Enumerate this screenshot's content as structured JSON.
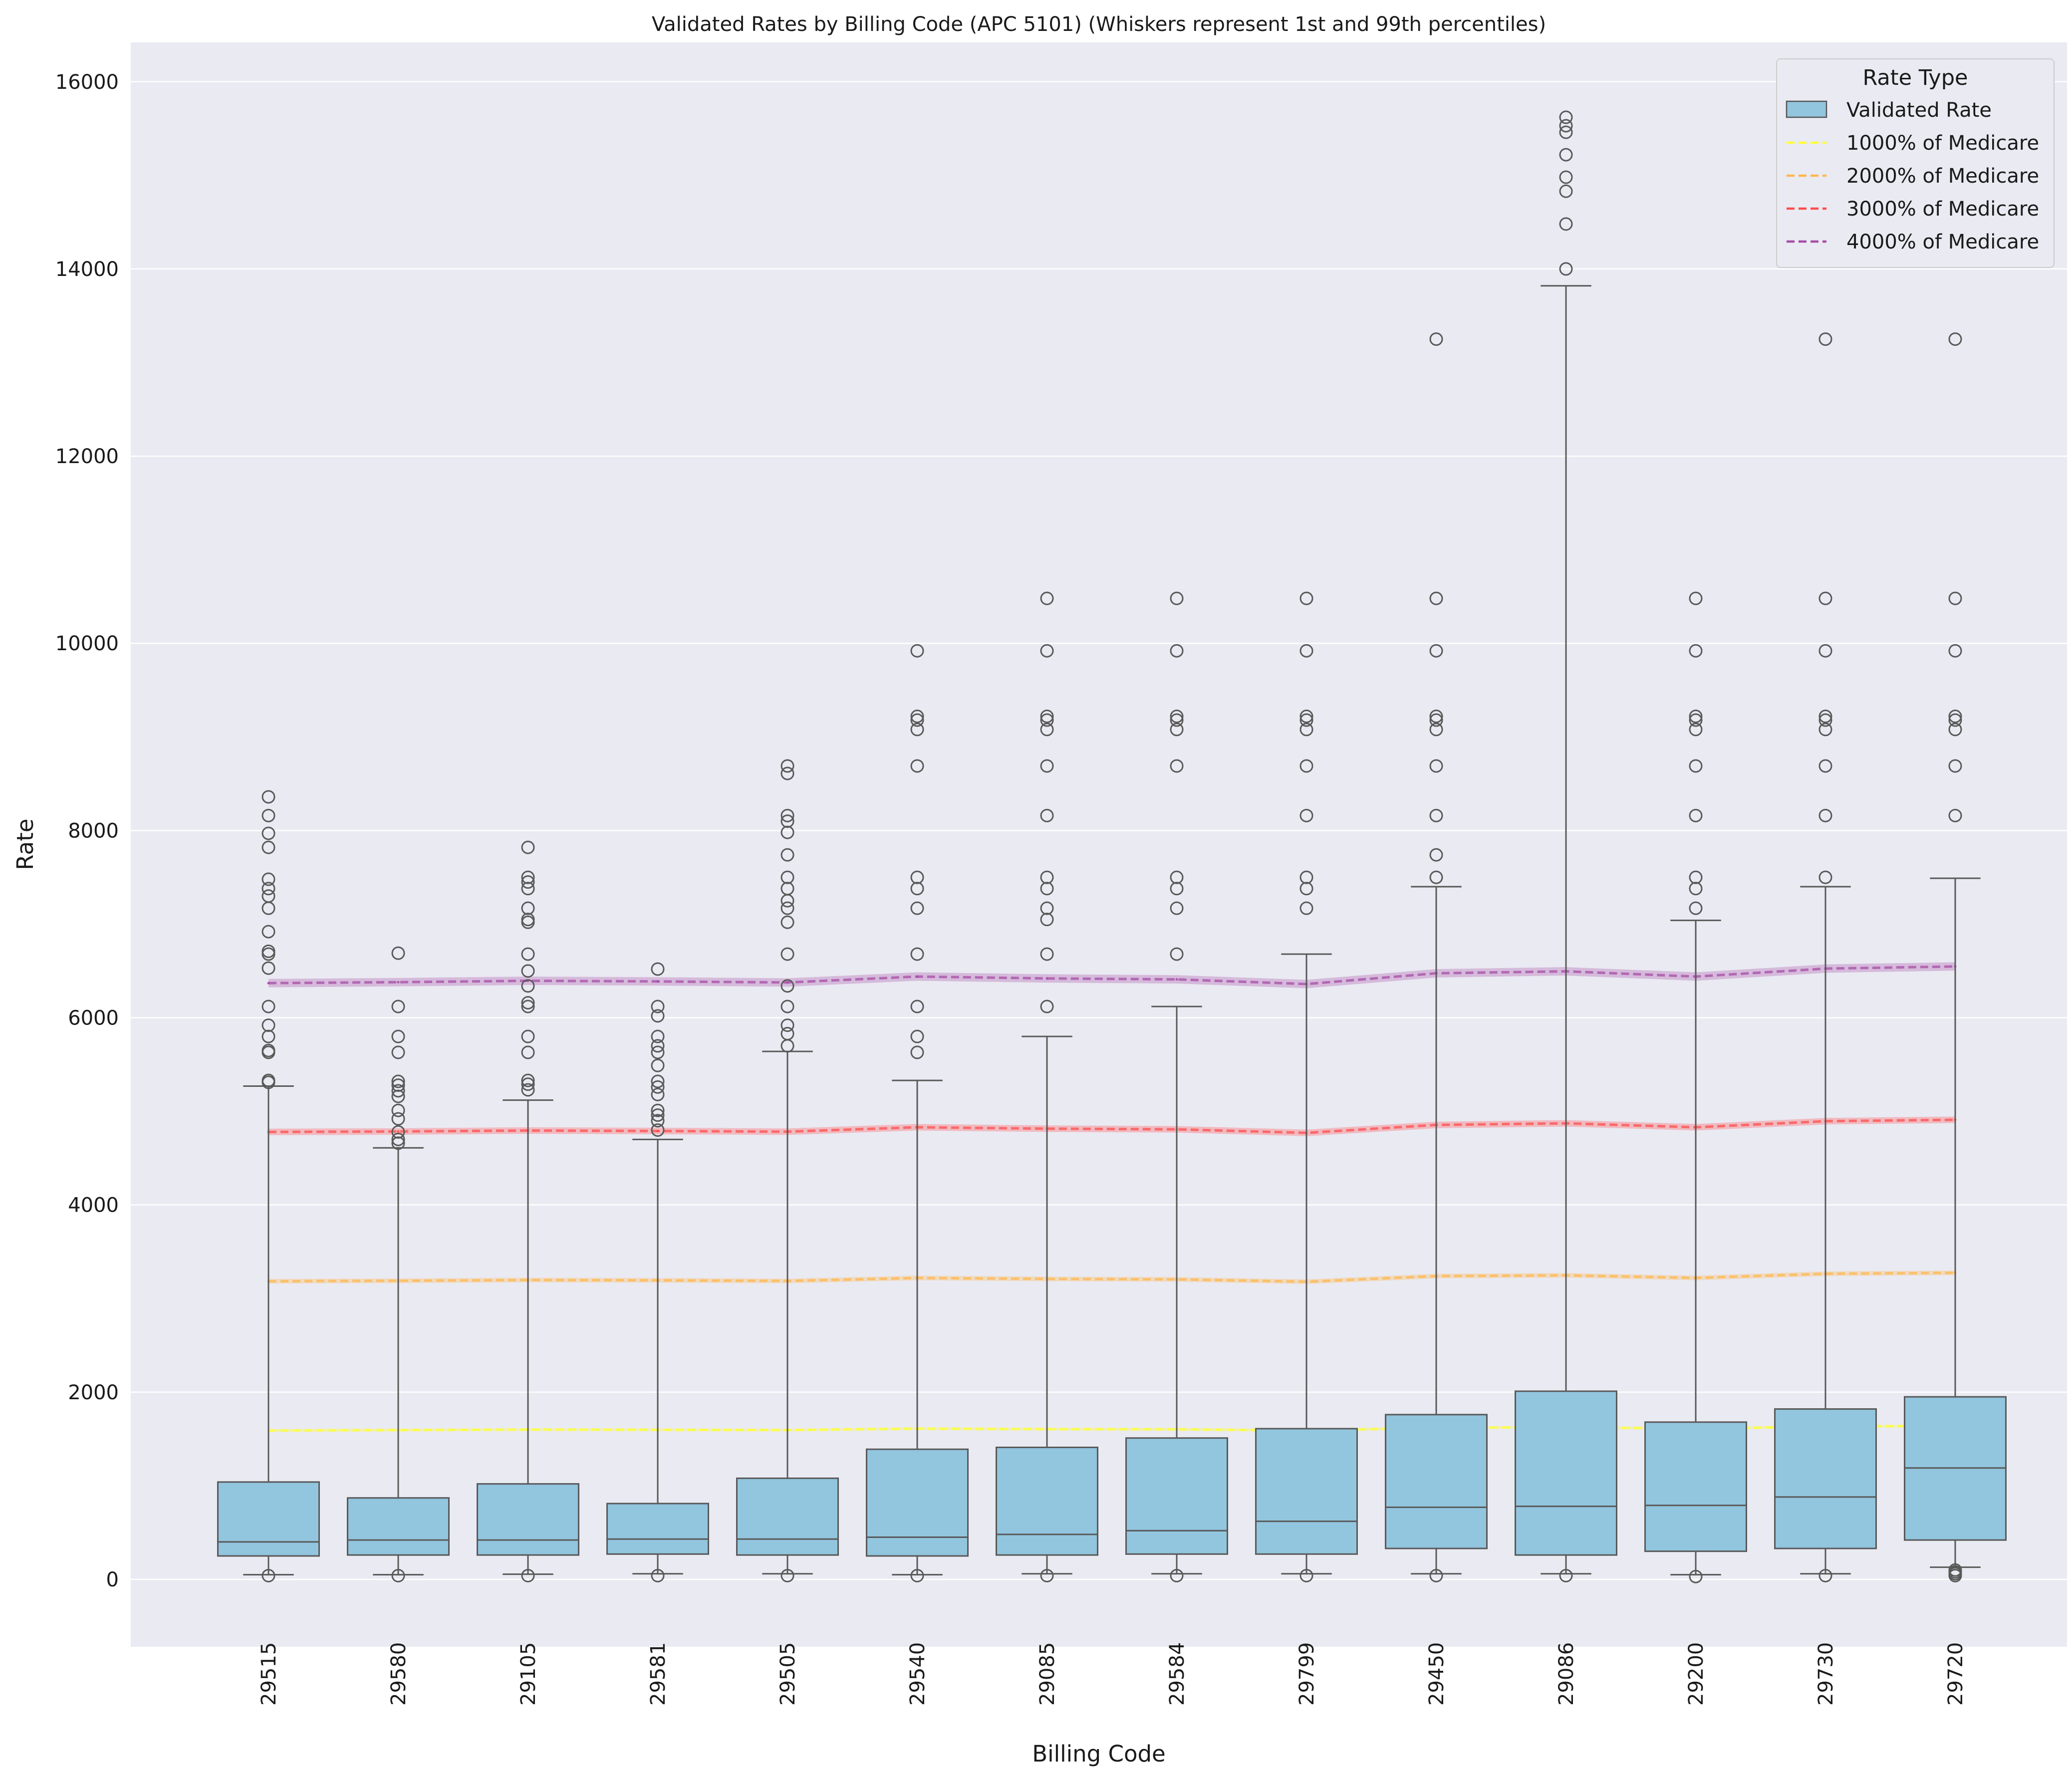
{
  "chart_data": {
    "type": "box",
    "title": "Validated Rates by Billing Code (APC 5101) (Whiskers represent 1st and 99th percentiles)",
    "xlabel": "Billing Code",
    "ylabel": "Rate",
    "ylim": [
      -720,
      16420
    ],
    "yticks": [
      0,
      2000,
      4000,
      6000,
      8000,
      10000,
      12000,
      14000,
      16000
    ],
    "ytick_labels": [
      "0",
      "2000",
      "4000",
      "6000",
      "8000",
      "10000",
      "12000",
      "14000",
      "16000"
    ],
    "grid": true,
    "legend_position": "top-right",
    "categories": [
      "29515",
      "29580",
      "29105",
      "29581",
      "29505",
      "29540",
      "29085",
      "29584",
      "29799",
      "29450",
      "29086",
      "29200",
      "29730",
      "29720"
    ],
    "legend": {
      "title": "Rate Type",
      "entries": [
        {
          "label": "Validated Rate",
          "kind": "box",
          "color": "#92c5de"
        },
        {
          "label": "1000% of Medicare",
          "kind": "line",
          "color": "#ffff33"
        },
        {
          "label": "2000% of Medicare",
          "kind": "line",
          "color": "#ffb74d"
        },
        {
          "label": "3000% of Medicare",
          "kind": "line",
          "color": "#ff4d4d"
        },
        {
          "label": "4000% of Medicare",
          "kind": "line",
          "color": "#a64ca6"
        }
      ]
    },
    "boxes": [
      {
        "q1": 250,
        "median": 400,
        "q3": 1040,
        "whisker_low": 50,
        "whisker_high": 5270,
        "outliers": [
          40,
          5310,
          5330,
          5630,
          5650,
          5800,
          5920,
          6120,
          6530,
          6680,
          6710,
          6920,
          7170,
          7300,
          7380,
          7480,
          7820,
          7970,
          8160,
          8360
        ]
      },
      {
        "q1": 260,
        "median": 420,
        "q3": 870,
        "whisker_low": 50,
        "whisker_high": 4610,
        "outliers": [
          40,
          4660,
          4700,
          4780,
          4920,
          5010,
          5160,
          5220,
          5280,
          5320,
          5630,
          5800,
          6120,
          6690
        ]
      },
      {
        "q1": 260,
        "median": 420,
        "q3": 1020,
        "whisker_low": 55,
        "whisker_high": 5120,
        "outliers": [
          40,
          5230,
          5290,
          5330,
          5630,
          5800,
          6120,
          6160,
          6340,
          6500,
          6680,
          7020,
          7050,
          7170,
          7380,
          7450,
          7500,
          7820
        ]
      },
      {
        "q1": 270,
        "median": 430,
        "q3": 810,
        "whisker_low": 60,
        "whisker_high": 4700,
        "outliers": [
          40,
          4800,
          4900,
          4960,
          5010,
          5180,
          5260,
          5320,
          5490,
          5630,
          5700,
          5800,
          6020,
          6120,
          6520
        ]
      },
      {
        "q1": 260,
        "median": 430,
        "q3": 1080,
        "whisker_low": 60,
        "whisker_high": 5640,
        "outliers": [
          40,
          5700,
          5830,
          5920,
          6120,
          6340,
          6680,
          7020,
          7170,
          7250,
          7380,
          7500,
          7740,
          7980,
          8100,
          8160,
          8610,
          8690
        ]
      },
      {
        "q1": 250,
        "median": 450,
        "q3": 1390,
        "whisker_low": 50,
        "whisker_high": 5330,
        "outliers": [
          40,
          5630,
          5800,
          6120,
          6680,
          7170,
          7380,
          7500,
          8690,
          9080,
          9180,
          9220,
          9920
        ]
      },
      {
        "q1": 260,
        "median": 480,
        "q3": 1410,
        "whisker_low": 60,
        "whisker_high": 5800,
        "outliers": [
          40,
          6120,
          6680,
          7050,
          7170,
          7380,
          7500,
          8160,
          8690,
          9080,
          9180,
          9220,
          9920,
          10480
        ]
      },
      {
        "q1": 270,
        "median": 520,
        "q3": 1510,
        "whisker_low": 60,
        "whisker_high": 6120,
        "outliers": [
          40,
          6680,
          7170,
          7380,
          7500,
          8690,
          9080,
          9180,
          9220,
          9920,
          10480
        ]
      },
      {
        "q1": 270,
        "median": 620,
        "q3": 1610,
        "whisker_low": 60,
        "whisker_high": 6680,
        "outliers": [
          40,
          7170,
          7380,
          7500,
          8160,
          8690,
          9080,
          9180,
          9220,
          9920,
          10480
        ]
      },
      {
        "q1": 330,
        "median": 770,
        "q3": 1760,
        "whisker_low": 60,
        "whisker_high": 7400,
        "outliers": [
          40,
          7500,
          7740,
          8160,
          8690,
          9080,
          9180,
          9220,
          9920,
          10480,
          13250
        ]
      },
      {
        "q1": 260,
        "median": 780,
        "q3": 2010,
        "whisker_low": 60,
        "whisker_high": 13820,
        "outliers": [
          40,
          14000,
          14480,
          14830,
          14980,
          15220,
          15460,
          15530,
          15620
        ]
      },
      {
        "q1": 300,
        "median": 790,
        "q3": 1680,
        "whisker_low": 50,
        "whisker_high": 7040,
        "outliers": [
          30,
          7170,
          7380,
          7500,
          8160,
          8690,
          9080,
          9180,
          9220,
          9920,
          10480
        ]
      },
      {
        "q1": 330,
        "median": 880,
        "q3": 1820,
        "whisker_low": 60,
        "whisker_high": 7400,
        "outliers": [
          40,
          7500,
          8160,
          8690,
          9080,
          9180,
          9220,
          9920,
          10480,
          13250
        ]
      },
      {
        "q1": 420,
        "median": 1190,
        "q3": 1950,
        "whisker_low": 130,
        "whisker_high": 7490,
        "outliers": [
          40,
          60,
          80,
          100,
          8160,
          8690,
          9080,
          9180,
          9220,
          9920,
          10480,
          13250
        ]
      }
    ],
    "series": [
      {
        "name": "1000% of Medicare",
        "color": "#ffff33",
        "band": 15,
        "values": [
          1590,
          1595,
          1600,
          1598,
          1595,
          1610,
          1605,
          1603,
          1590,
          1620,
          1625,
          1610,
          1633,
          1640
        ]
      },
      {
        "name": "2000% of Medicare",
        "color": "#ffb74d",
        "band": 25,
        "values": [
          3185,
          3190,
          3198,
          3195,
          3188,
          3220,
          3210,
          3205,
          3180,
          3240,
          3248,
          3220,
          3265,
          3275
        ]
      },
      {
        "name": "3000% of Medicare",
        "color": "#ff4d4d",
        "band": 35,
        "values": [
          4780,
          4785,
          4795,
          4790,
          4783,
          4830,
          4815,
          4808,
          4770,
          4855,
          4872,
          4830,
          4895,
          4910
        ]
      },
      {
        "name": "4000% of Medicare",
        "color": "#a64ca6",
        "band": 45,
        "values": [
          6370,
          6380,
          6395,
          6388,
          6377,
          6440,
          6420,
          6410,
          6360,
          6475,
          6496,
          6440,
          6525,
          6548
        ]
      }
    ]
  }
}
